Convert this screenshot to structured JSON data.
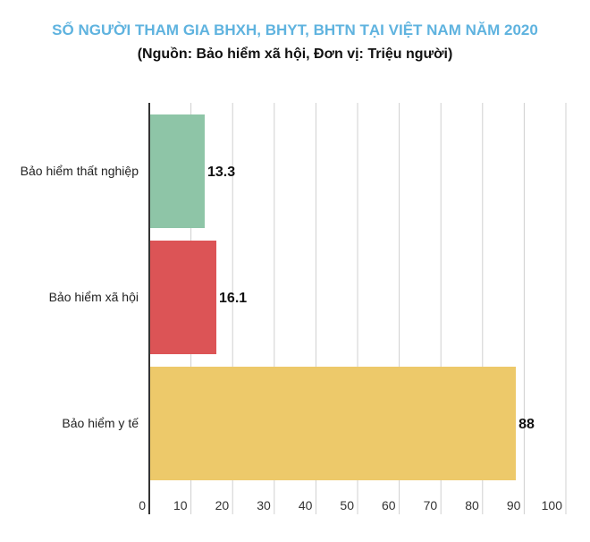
{
  "chart_data": {
    "type": "bar",
    "orientation": "horizontal",
    "title": "SỐ NGƯỜI THAM GIA BHXH, BHYT, BHTN TẠI VIỆT NAM NĂM 2020",
    "subtitle": "(Nguồn: Bảo hiểm xã hội, Đơn vị: Triệu người)",
    "categories": [
      "Bảo hiểm thất nghiệp",
      "Bảo hiểm xã hội",
      "Bảo hiểm y tế"
    ],
    "values": [
      13.3,
      16.1,
      88
    ],
    "data_labels": [
      "13.3",
      "16.1",
      "88"
    ],
    "colors": [
      "#8ec5a7",
      "#dc5456",
      "#edc96a"
    ],
    "xlim": [
      0,
      100
    ],
    "xticks": [
      "0",
      "10",
      "20",
      "30",
      "40",
      "50",
      "60",
      "70",
      "80",
      "90",
      "100"
    ],
    "grid": true,
    "title_color": "#5fb3df"
  }
}
